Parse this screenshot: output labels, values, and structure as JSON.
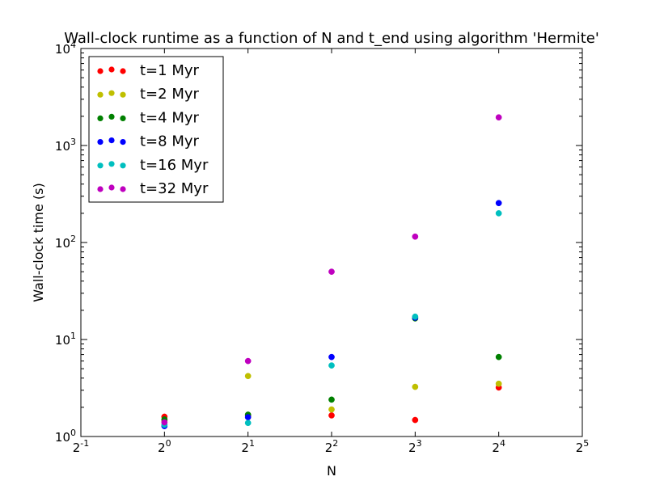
{
  "chart_data": {
    "type": "scatter",
    "title": "Wall-clock runtime as a function of N and t_end using algorithm 'Hermite'",
    "xlabel": "N",
    "ylabel": "Wall-clock time (s)",
    "x_scale": "log2",
    "y_scale": "log10",
    "xlim": [
      0.5,
      32
    ],
    "ylim": [
      1,
      10000
    ],
    "grid": false,
    "legend_position": "top-left",
    "x_ticks": [
      {
        "base": "2",
        "exp": "-1"
      },
      {
        "base": "2",
        "exp": "0"
      },
      {
        "base": "2",
        "exp": "1"
      },
      {
        "base": "2",
        "exp": "2"
      },
      {
        "base": "2",
        "exp": "3"
      },
      {
        "base": "2",
        "exp": "4"
      },
      {
        "base": "2",
        "exp": "5"
      }
    ],
    "y_ticks": [
      {
        "base": "10",
        "exp": "0"
      },
      {
        "base": "10",
        "exp": "1"
      },
      {
        "base": "10",
        "exp": "2"
      },
      {
        "base": "10",
        "exp": "3"
      },
      {
        "base": "10",
        "exp": "4"
      }
    ],
    "x": [
      1,
      2,
      4,
      8,
      16
    ],
    "series": [
      {
        "name": "t=1 Myr",
        "color": "#ff0000",
        "values": [
          1.6,
          1.65,
          1.65,
          1.48,
          3.2
        ]
      },
      {
        "name": "t=2 Myr",
        "color": "#bfbf00",
        "values": [
          1.45,
          4.2,
          1.9,
          3.25,
          3.5
        ]
      },
      {
        "name": "t=4 Myr",
        "color": "#008000",
        "values": [
          1.5,
          1.68,
          2.4,
          16.5,
          6.6
        ]
      },
      {
        "name": "t=8 Myr",
        "color": "#0000ff",
        "values": [
          1.28,
          1.58,
          6.6,
          16.8,
          255
        ]
      },
      {
        "name": "t=16 Myr",
        "color": "#00bfbf",
        "values": [
          1.32,
          1.38,
          5.4,
          17.2,
          200
        ]
      },
      {
        "name": "t=32 Myr",
        "color": "#bf00bf",
        "values": [
          1.4,
          6.0,
          50,
          115,
          1950
        ]
      }
    ]
  }
}
